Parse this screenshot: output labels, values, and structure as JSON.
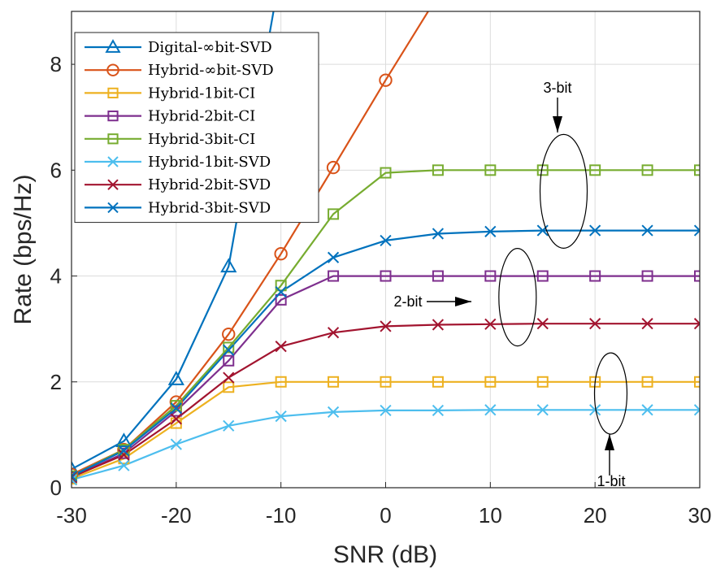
{
  "chart_data": {
    "type": "line",
    "xlabel": "SNR (dB)",
    "ylabel": "Rate (bps/Hz)",
    "xlim": [
      -30,
      30
    ],
    "ylim": [
      0,
      9
    ],
    "xticks": [
      -30,
      -20,
      -10,
      0,
      10,
      20,
      30
    ],
    "yticks": [
      0,
      2,
      4,
      6,
      8
    ],
    "grid": true,
    "legend_position": "top-left",
    "x": [
      -30,
      -25,
      -20,
      -15,
      -10,
      -5,
      0,
      5,
      10,
      15,
      20,
      25,
      30
    ],
    "series": [
      {
        "name": "Digital-∞bit-SVD",
        "color": "#0072BD",
        "marker": "triangle",
        "values": [
          0.35,
          0.88,
          2.05,
          4.18,
          9.8,
          null,
          null,
          null,
          null,
          null,
          null,
          null,
          null
        ]
      },
      {
        "name": "Hybrid-∞bit-SVD",
        "color": "#D95319",
        "marker": "circle",
        "values": [
          0.25,
          0.72,
          1.62,
          2.9,
          4.42,
          6.05,
          7.7,
          9.3,
          null,
          null,
          null,
          null,
          null
        ]
      },
      {
        "name": "Hybrid-1bit-CI",
        "color": "#EDB120",
        "marker": "square",
        "values": [
          0.17,
          0.55,
          1.22,
          1.9,
          2.0,
          2.0,
          2.0,
          2.0,
          2.0,
          2.0,
          2.0,
          2.0,
          2.0
        ]
      },
      {
        "name": "Hybrid-2bit-CI",
        "color": "#7E2F8E",
        "marker": "square",
        "values": [
          0.2,
          0.65,
          1.45,
          2.4,
          3.55,
          4.0,
          4.0,
          4.0,
          4.0,
          4.0,
          4.0,
          4.0,
          4.0
        ]
      },
      {
        "name": "Hybrid-3bit-CI",
        "color": "#77AC30",
        "marker": "square",
        "values": [
          0.22,
          0.72,
          1.55,
          2.65,
          3.82,
          5.17,
          5.95,
          6.0,
          6.0,
          6.0,
          6.0,
          6.0,
          6.0
        ]
      },
      {
        "name": "Hybrid-1bit-SVD",
        "color": "#4DBEEE",
        "marker": "x",
        "values": [
          0.15,
          0.42,
          0.82,
          1.17,
          1.35,
          1.43,
          1.46,
          1.46,
          1.47,
          1.47,
          1.47,
          1.47,
          1.47
        ]
      },
      {
        "name": "Hybrid-2bit-SVD",
        "color": "#A2142F",
        "marker": "x",
        "values": [
          0.2,
          0.62,
          1.3,
          2.08,
          2.67,
          2.93,
          3.05,
          3.08,
          3.09,
          3.1,
          3.1,
          3.1,
          3.1
        ]
      },
      {
        "name": "Hybrid-3bit-SVD",
        "color": "#0072BD",
        "marker": "x",
        "values": [
          0.22,
          0.7,
          1.5,
          2.6,
          3.7,
          4.35,
          4.67,
          4.8,
          4.84,
          4.86,
          4.86,
          4.86,
          4.86
        ]
      }
    ],
    "annotations": [
      {
        "text": "3-bit",
        "x": 17,
        "y": 7.6
      },
      {
        "text": "2-bit",
        "x": -8,
        "y": 3.55
      },
      {
        "text": "1-bit",
        "x": 22,
        "y": 0.15
      }
    ]
  }
}
